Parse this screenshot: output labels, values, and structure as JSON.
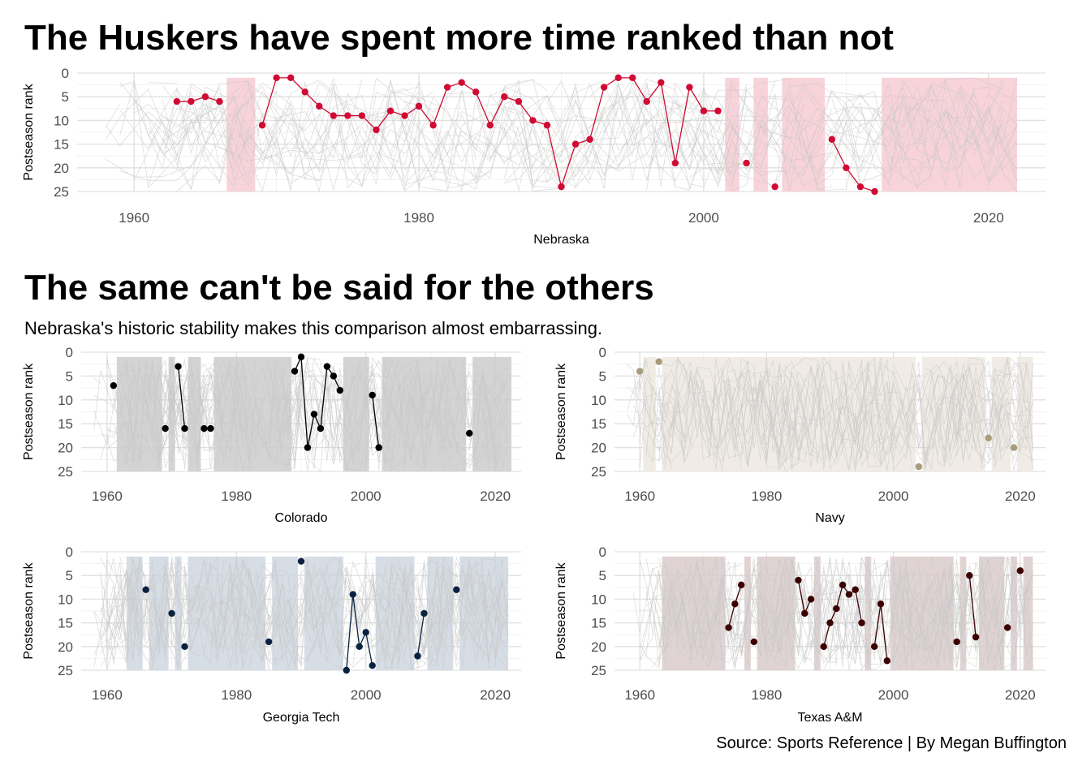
{
  "title": "The Huskers have spent more time ranked than not",
  "subtitle_title": "The same can't be said for the others",
  "subtitle": "Nebraska's historic stability makes this comparison almost embarrassing.",
  "caption": "Source: Sports Reference | By Megan Buffington",
  "chart_data": [
    {
      "type": "line",
      "team": "Nebraska",
      "xlabel": "Nebraska",
      "ylabel": "Postseason rank",
      "xlim": [
        1956,
        2024
      ],
      "ylim": [
        0,
        25
      ],
      "y_reversed": true,
      "xticks": [
        1960,
        1980,
        2000,
        2020
      ],
      "yticks": [
        0,
        5,
        10,
        15,
        20,
        25
      ],
      "color": "#d00a33",
      "shade_color": "#f7cbd3",
      "unranked_spans": [
        [
          1966.5,
          1968.5
        ],
        [
          2001.5,
          2002.5
        ],
        [
          2003.5,
          2004.5
        ],
        [
          2005.5,
          2008.5
        ],
        [
          2012.5,
          2022
        ]
      ],
      "points": [
        [
          1963,
          6
        ],
        [
          1964,
          6
        ],
        [
          1965,
          5
        ],
        [
          1966,
          6
        ],
        [
          1969,
          11
        ],
        [
          1970,
          1
        ],
        [
          1971,
          1
        ],
        [
          1972,
          4
        ],
        [
          1973,
          7
        ],
        [
          1974,
          9
        ],
        [
          1975,
          9
        ],
        [
          1976,
          9
        ],
        [
          1977,
          12
        ],
        [
          1978,
          8
        ],
        [
          1979,
          9
        ],
        [
          1980,
          7
        ],
        [
          1981,
          11
        ],
        [
          1982,
          3
        ],
        [
          1983,
          2
        ],
        [
          1984,
          4
        ],
        [
          1985,
          11
        ],
        [
          1986,
          5
        ],
        [
          1987,
          6
        ],
        [
          1988,
          10
        ],
        [
          1989,
          11
        ],
        [
          1990,
          24
        ],
        [
          1991,
          15
        ],
        [
          1992,
          14
        ],
        [
          1993,
          3
        ],
        [
          1994,
          1
        ],
        [
          1995,
          1
        ],
        [
          1996,
          6
        ],
        [
          1997,
          2
        ],
        [
          1998,
          19
        ],
        [
          1999,
          3
        ],
        [
          2000,
          8
        ],
        [
          2001,
          8
        ],
        [
          2003,
          19
        ],
        [
          2005,
          24
        ],
        [
          2009,
          14
        ],
        [
          2010,
          20
        ],
        [
          2011,
          24
        ],
        [
          2012,
          25
        ]
      ]
    },
    {
      "type": "line",
      "team": "Colorado",
      "xlabel": "Colorado",
      "ylabel": "Postseason rank",
      "xlim": [
        1956,
        2024
      ],
      "ylim": [
        0,
        25
      ],
      "y_reversed": true,
      "xticks": [
        1960,
        1980,
        2000,
        2020
      ],
      "yticks": [
        0,
        5,
        10,
        15,
        20,
        25
      ],
      "color": "#000000",
      "shade_color": "#cccccc",
      "unranked_spans": [
        [
          1961.5,
          1968.5
        ],
        [
          1969.5,
          1970.5
        ],
        [
          1972.5,
          1974.5
        ],
        [
          1976.5,
          1988.5
        ],
        [
          1996.5,
          2000.5
        ],
        [
          2002.5,
          2015.5
        ],
        [
          2016.5,
          2022.5
        ]
      ],
      "points": [
        [
          1961,
          7
        ],
        [
          1969,
          16
        ],
        [
          1971,
          3
        ],
        [
          1972,
          16
        ],
        [
          1975,
          16
        ],
        [
          1976,
          16
        ],
        [
          1989,
          4
        ],
        [
          1990,
          1
        ],
        [
          1991,
          20
        ],
        [
          1992,
          13
        ],
        [
          1993,
          16
        ],
        [
          1994,
          3
        ],
        [
          1995,
          5
        ],
        [
          1996,
          8
        ],
        [
          2001,
          9
        ],
        [
          2002,
          20
        ],
        [
          2016,
          17
        ]
      ]
    },
    {
      "type": "line",
      "team": "Navy",
      "xlabel": "Navy",
      "ylabel": "Postseason rank",
      "xlim": [
        1956,
        2024
      ],
      "ylim": [
        0,
        25
      ],
      "y_reversed": true,
      "xticks": [
        1960,
        1980,
        2000,
        2020
      ],
      "yticks": [
        0,
        5,
        10,
        15,
        20,
        25
      ],
      "color": "#a89c7c",
      "shade_color": "#ede9e1",
      "unranked_spans": [
        [
          1960.5,
          1962.5
        ],
        [
          1963.5,
          2003.5
        ],
        [
          2004.5,
          2014.5
        ],
        [
          2015.5,
          2018.5
        ],
        [
          2019.5,
          2022
        ]
      ],
      "points": [
        [
          1960,
          4
        ],
        [
          1963,
          2
        ],
        [
          2004,
          24
        ],
        [
          2015,
          18
        ],
        [
          2019,
          20
        ]
      ]
    },
    {
      "type": "line",
      "team": "Georgia Tech",
      "xlabel": "Georgia Tech",
      "ylabel": "Postseason rank",
      "xlim": [
        1956,
        2024
      ],
      "ylim": [
        0,
        25
      ],
      "y_reversed": true,
      "xticks": [
        1960,
        1980,
        2000,
        2020
      ],
      "yticks": [
        0,
        5,
        10,
        15,
        20,
        25
      ],
      "color": "#0a2240",
      "shade_color": "#cfd7e1",
      "unranked_spans": [
        [
          1963,
          1965.5
        ],
        [
          1966.5,
          1969.5
        ],
        [
          1970.5,
          1971.5
        ],
        [
          1972.5,
          1984.5
        ],
        [
          1985.5,
          1989.5
        ],
        [
          1990.5,
          1996.5
        ],
        [
          2001.5,
          2007.5
        ],
        [
          2009.5,
          2013.5
        ],
        [
          2014.5,
          2022
        ]
      ],
      "points": [
        [
          1966,
          8
        ],
        [
          1970,
          13
        ],
        [
          1972,
          20
        ],
        [
          1985,
          19
        ],
        [
          1990,
          2
        ],
        [
          1997,
          25
        ],
        [
          1998,
          9
        ],
        [
          1999,
          20
        ],
        [
          2000,
          17
        ],
        [
          2001,
          24
        ],
        [
          2008,
          22
        ],
        [
          2009,
          13
        ],
        [
          2014,
          8
        ]
      ]
    },
    {
      "type": "line",
      "team": "Texas A&M",
      "xlabel": "Texas A&M",
      "ylabel": "Postseason rank",
      "xlim": [
        1956,
        2024
      ],
      "ylim": [
        0,
        25
      ],
      "y_reversed": true,
      "xticks": [
        1960,
        1980,
        2000,
        2020
      ],
      "yticks": [
        0,
        5,
        10,
        15,
        20,
        25
      ],
      "color": "#3c0000",
      "shade_color": "#dbcbcb",
      "unranked_spans": [
        [
          1963.5,
          1973.5
        ],
        [
          1976.5,
          1977.5
        ],
        [
          1978.5,
          1984.5
        ],
        [
          1987.5,
          1988.5
        ],
        [
          1995.5,
          1996.5
        ],
        [
          1999.5,
          2009.5
        ],
        [
          2010.5,
          2011.5
        ],
        [
          2013.5,
          2017.5
        ],
        [
          2018.5,
          2019.5
        ],
        [
          2020.5,
          2022
        ]
      ],
      "points": [
        [
          1974,
          16
        ],
        [
          1975,
          11
        ],
        [
          1976,
          7
        ],
        [
          1978,
          19
        ],
        [
          1985,
          6
        ],
        [
          1986,
          13
        ],
        [
          1987,
          10
        ],
        [
          1989,
          20
        ],
        [
          1990,
          15
        ],
        [
          1991,
          12
        ],
        [
          1992,
          7
        ],
        [
          1993,
          9
        ],
        [
          1994,
          8
        ],
        [
          1995,
          15
        ],
        [
          1997,
          20
        ],
        [
          1998,
          11
        ],
        [
          1999,
          23
        ],
        [
          2010,
          19
        ],
        [
          2012,
          5
        ],
        [
          2013,
          18
        ],
        [
          2018,
          16
        ],
        [
          2020,
          4
        ]
      ]
    }
  ]
}
